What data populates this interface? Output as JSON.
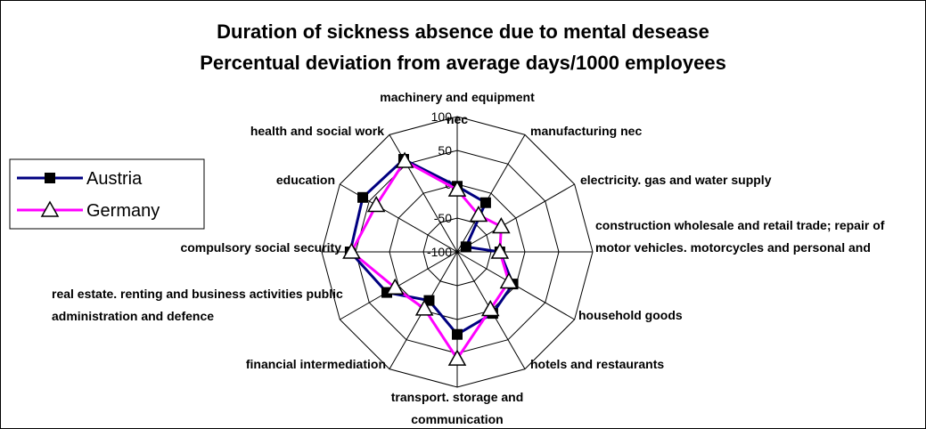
{
  "chart_data": {
    "type": "radar",
    "title": "Duration of sickness absence due to mental desease",
    "subtitle": "Percentual deviation from average days/1000 employees",
    "categories": [
      "machinery and equipment nec",
      "manufacturing nec",
      "electricity. gas and water supply",
      "construction wholesale and retail trade; repair of motor vehicles. motorcycles and personal and",
      "household goods",
      "hotels and restaurants",
      "transport. storage and communication",
      "financial intermediation",
      "real estate. renting and business activities public administration and defence",
      "compulsory social security",
      "education",
      "health and social work"
    ],
    "series": [
      {
        "name": "Austria",
        "color": "#000080",
        "marker": "square",
        "values": [
          -3,
          -16,
          -85,
          -37,
          -5,
          5,
          22,
          -17,
          20,
          58,
          61,
          58
        ]
      },
      {
        "name": "Germany",
        "color": "#ff00ff",
        "marker": "triangle",
        "values": [
          -8,
          -37,
          -25,
          -37,
          -12,
          -2,
          58,
          -3,
          6,
          56,
          38,
          55
        ]
      }
    ],
    "ylim": [
      -100,
      100
    ],
    "yticks": [
      -100,
      -50,
      0,
      50,
      100
    ],
    "grid": true,
    "legend": "left"
  }
}
